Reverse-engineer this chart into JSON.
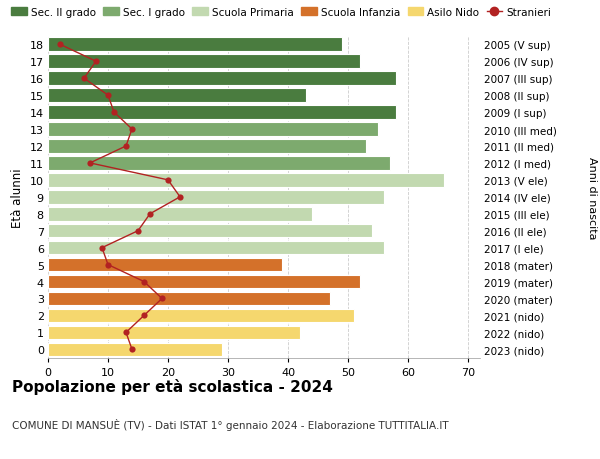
{
  "ages": [
    18,
    17,
    16,
    15,
    14,
    13,
    12,
    11,
    10,
    9,
    8,
    7,
    6,
    5,
    4,
    3,
    2,
    1,
    0
  ],
  "bar_values": [
    49,
    52,
    58,
    43,
    58,
    55,
    53,
    57,
    66,
    56,
    44,
    54,
    56,
    39,
    52,
    47,
    51,
    42,
    29
  ],
  "bar_colors": [
    "#4a7c3f",
    "#4a7c3f",
    "#4a7c3f",
    "#4a7c3f",
    "#4a7c3f",
    "#7daa6e",
    "#7daa6e",
    "#7daa6e",
    "#c2d9b0",
    "#c2d9b0",
    "#c2d9b0",
    "#c2d9b0",
    "#c2d9b0",
    "#d4712a",
    "#d4712a",
    "#d4712a",
    "#f5d76e",
    "#f5d76e",
    "#f5d76e"
  ],
  "right_labels": [
    "2005 (V sup)",
    "2006 (IV sup)",
    "2007 (III sup)",
    "2008 (II sup)",
    "2009 (I sup)",
    "2010 (III med)",
    "2011 (II med)",
    "2012 (I med)",
    "2013 (V ele)",
    "2014 (IV ele)",
    "2015 (III ele)",
    "2016 (II ele)",
    "2017 (I ele)",
    "2018 (mater)",
    "2019 (mater)",
    "2020 (mater)",
    "2021 (nido)",
    "2022 (nido)",
    "2023 (nido)"
  ],
  "stranieri_values": [
    2,
    8,
    6,
    10,
    11,
    14,
    13,
    7,
    20,
    22,
    17,
    15,
    9,
    10,
    16,
    19,
    16,
    13,
    14
  ],
  "ylabel_left": "Età alunni",
  "ylabel_right": "Anni di nascita",
  "title": "Popolazione per età scolastica - 2024",
  "subtitle": "COMUNE DI MANSUÈ (TV) - Dati ISTAT 1° gennaio 2024 - Elaborazione TUTTITALIA.IT",
  "legend_labels": [
    "Sec. II grado",
    "Sec. I grado",
    "Scuola Primaria",
    "Scuola Infanzia",
    "Asilo Nido",
    "Stranieri"
  ],
  "legend_colors": [
    "#4a7c3f",
    "#7daa6e",
    "#c2d9b0",
    "#d4712a",
    "#f5d76e",
    "#b22222"
  ],
  "xlim": [
    0,
    72
  ],
  "background_color": "#ffffff",
  "grid_color": "#cccccc"
}
